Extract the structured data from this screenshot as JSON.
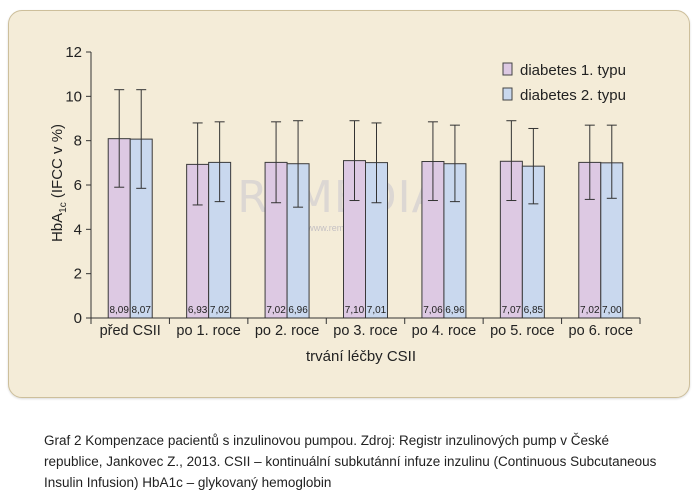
{
  "chart_data": {
    "type": "bar",
    "xlabel": "trvání léčby CSII",
    "ylabel_main": "HbA",
    "ylabel_sub": "1c",
    "ylabel_rest": " (IFCC v %)",
    "ylim": [
      0,
      12
    ],
    "yticks": [
      0,
      2,
      4,
      6,
      8,
      10,
      12
    ],
    "categories": [
      "před CSII",
      "po 1. roce",
      "po 2. roce",
      "po 3. roce",
      "po 4. roce",
      "po 5. roce",
      "po 6. roce"
    ],
    "series": [
      {
        "name": "diabetes 1. typu",
        "color": "#ddc9e3",
        "values": [
          8.09,
          6.93,
          7.02,
          7.1,
          7.06,
          7.07,
          7.02
        ],
        "labels": [
          "8,09",
          "6,93",
          "7,02",
          "7,10",
          "7,06",
          "7,07",
          "7,02"
        ],
        "err_low": [
          5.9,
          5.1,
          5.2,
          5.3,
          5.3,
          5.3,
          5.35
        ],
        "err_high": [
          10.3,
          8.8,
          8.85,
          8.9,
          8.85,
          8.9,
          8.7
        ]
      },
      {
        "name": "diabetes 2. typu",
        "color": "#c9d8ee",
        "values": [
          8.07,
          7.02,
          6.96,
          7.01,
          6.96,
          6.85,
          7.0
        ],
        "labels": [
          "8,07",
          "7,02",
          "6,96",
          "7,01",
          "6,96",
          "6,85",
          "7,00"
        ],
        "err_low": [
          5.85,
          5.25,
          5.0,
          5.2,
          5.25,
          5.15,
          5.4
        ],
        "err_high": [
          10.3,
          8.85,
          8.9,
          8.8,
          8.7,
          8.55,
          8.7
        ]
      }
    ],
    "legend_position": "top-right",
    "grid": false
  },
  "watermark": "ReMEDIA",
  "watermark_url": "www.remedia.cz",
  "caption": "Graf 2 Kompenzace pacientů s inzulinovou pumpou. Zdroj: Registr inzulinových pump v České republice, Jankovec Z., 2013. CSII – kontinuální subkutánní infuze inzulinu (Continuous Subcutaneous Insulin Infusion) HbA1c – glykovaný hemoglobin"
}
